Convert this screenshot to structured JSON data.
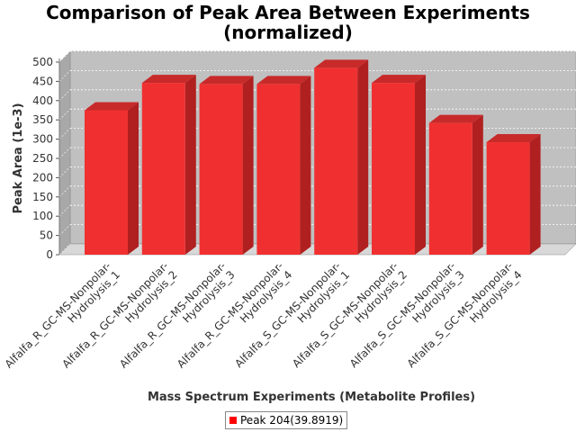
{
  "chart_data": {
    "type": "bar",
    "title_line1": "Comparison of Peak Area Between Experiments",
    "title_line2": "(normalized)",
    "xlabel": "Mass Spectrum Experiments (Metabolite Profiles)",
    "ylabel": "Peak Area (1e-3)",
    "ylim": [
      0,
      500
    ],
    "yticks": [
      0,
      50,
      100,
      150,
      200,
      250,
      300,
      350,
      400,
      450,
      500
    ],
    "categories": [
      [
        "Alfalfa_R_GC-MS-Nonpolar-",
        "Hydrolysis_1"
      ],
      [
        "Alfalfa_R_GC-MS-Nonpolar-",
        "Hydrolysis_2"
      ],
      [
        "Alfalfa_R_GC-MS-Nonpolar-",
        "Hydrolysis_3"
      ],
      [
        "Alfalfa_R_GC-MS-Nonpolar-",
        "Hydrolysis_4"
      ],
      [
        "Alfalfa_S_GC-MS-Nonpolar-",
        "Hydrolysis_1"
      ],
      [
        "Alfalfa_S_GC-MS-Nonpolar-",
        "Hydrolysis_2"
      ],
      [
        "Alfalfa_S_GC-MS-Nonpolar-",
        "Hydrolysis_3"
      ],
      [
        "Alfalfa_S_GC-MS-Nonpolar-",
        "Hydrolysis_4"
      ]
    ],
    "series": [
      {
        "name": "Peak 204(39.8919)",
        "values": [
          375,
          446,
          443,
          443,
          485,
          446,
          342,
          292
        ]
      }
    ],
    "grid": true,
    "legend_position": "bottom",
    "colors": {
      "bar": "#ff0000",
      "plot_bg": "#c0c0c0"
    }
  }
}
